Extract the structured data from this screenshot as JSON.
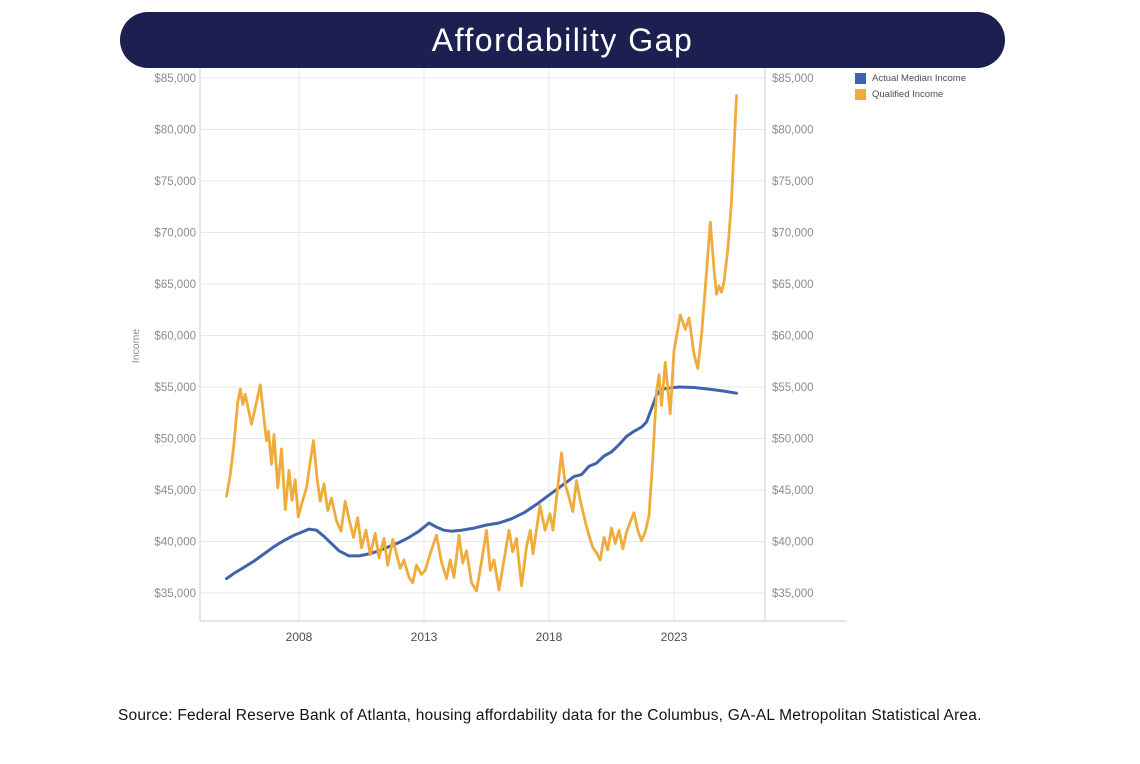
{
  "title": {
    "text": "Affordability Gap"
  },
  "source_note": "Source: Federal Reserve Bank of Atlanta, housing affordability data for the Columbus, GA-AL Metropolitan Statistical Area.",
  "colors": {
    "banner_bg": "#1c2050",
    "title_text": "#ffffff",
    "actual_median_income": "#4063ad",
    "qualified_income": "#efac3c",
    "gridline": "#e9e9e9",
    "axis_boundary": "#cfcfcf",
    "bottom_axis": "#c8c8c8",
    "tick_text": "#8c8c8c",
    "year_text": "#4d4d4d",
    "income_label_text": "#8c8c8c",
    "legend_text": "#4d4d5a",
    "source_text": "#141414"
  },
  "legend": {
    "position": "top-right",
    "items": [
      {
        "label": "Actual Median Income",
        "color": "#4063ad"
      },
      {
        "label": "Qualified Income",
        "color": "#efac3c"
      }
    ]
  },
  "axes": {
    "y_label": "Income",
    "y_tick_labels": [
      "$35,000",
      "$40,000",
      "$45,000",
      "$50,000",
      "$55,000",
      "$60,000",
      "$65,000",
      "$70,000",
      "$75,000",
      "$80,000",
      "$85,000"
    ],
    "y_tick_values": [
      35000,
      40000,
      45000,
      50000,
      55000,
      60000,
      65000,
      70000,
      75000,
      80000,
      85000
    ],
    "x_tick_labels": [
      "2008",
      "2013",
      "2018",
      "2023"
    ],
    "x_tick_values": [
      2008,
      2013,
      2018,
      2023
    ]
  },
  "chart_data": {
    "type": "line",
    "title": "Affordability Gap",
    "xlabel": "",
    "ylabel": "Income",
    "xlim": [
      2004.0,
      2026.6
    ],
    "ylim": [
      32300,
      86000
    ],
    "grid": true,
    "legend_position": "top-right",
    "x_ticks": [
      2008,
      2013,
      2018,
      2023
    ],
    "y_ticks": [
      35000,
      40000,
      45000,
      50000,
      55000,
      60000,
      65000,
      70000,
      75000,
      80000,
      85000
    ],
    "series": [
      {
        "name": "Actual Median Income",
        "color": "#4063ad",
        "points": [
          [
            2005.1,
            36400
          ],
          [
            2005.4,
            36900
          ],
          [
            2005.8,
            37500
          ],
          [
            2006.2,
            38100
          ],
          [
            2006.6,
            38800
          ],
          [
            2007.0,
            39500
          ],
          [
            2007.4,
            40100
          ],
          [
            2007.8,
            40600
          ],
          [
            2008.1,
            40900
          ],
          [
            2008.4,
            41200
          ],
          [
            2008.7,
            41100
          ],
          [
            2009.0,
            40500
          ],
          [
            2009.3,
            39800
          ],
          [
            2009.6,
            39100
          ],
          [
            2010.0,
            38600
          ],
          [
            2010.4,
            38600
          ],
          [
            2010.8,
            38800
          ],
          [
            2011.2,
            39100
          ],
          [
            2011.6,
            39500
          ],
          [
            2012.0,
            39900
          ],
          [
            2012.4,
            40400
          ],
          [
            2012.8,
            41000
          ],
          [
            2013.2,
            41800
          ],
          [
            2013.5,
            41400
          ],
          [
            2013.8,
            41100
          ],
          [
            2014.1,
            41000
          ],
          [
            2014.5,
            41100
          ],
          [
            2015.0,
            41300
          ],
          [
            2015.5,
            41600
          ],
          [
            2016.0,
            41800
          ],
          [
            2016.5,
            42200
          ],
          [
            2017.0,
            42800
          ],
          [
            2017.5,
            43600
          ],
          [
            2018.0,
            44500
          ],
          [
            2018.5,
            45400
          ],
          [
            2019.0,
            46300
          ],
          [
            2019.3,
            46500
          ],
          [
            2019.6,
            47300
          ],
          [
            2019.9,
            47600
          ],
          [
            2020.2,
            48300
          ],
          [
            2020.5,
            48700
          ],
          [
            2020.8,
            49400
          ],
          [
            2021.1,
            50200
          ],
          [
            2021.4,
            50700
          ],
          [
            2021.7,
            51100
          ],
          [
            2021.9,
            51600
          ],
          [
            2022.1,
            52900
          ],
          [
            2022.3,
            54200
          ],
          [
            2022.5,
            54800
          ],
          [
            2022.8,
            54900
          ],
          [
            2023.2,
            55000
          ],
          [
            2023.8,
            54950
          ],
          [
            2024.4,
            54800
          ],
          [
            2025.0,
            54600
          ],
          [
            2025.5,
            54400
          ]
        ]
      },
      {
        "name": "Qualified Income",
        "color": "#efac3c",
        "points": [
          [
            2005.1,
            44400
          ],
          [
            2005.25,
            46500
          ],
          [
            2005.4,
            49500
          ],
          [
            2005.55,
            53500
          ],
          [
            2005.65,
            54800
          ],
          [
            2005.75,
            53300
          ],
          [
            2005.85,
            54300
          ],
          [
            2005.95,
            53100
          ],
          [
            2006.1,
            51400
          ],
          [
            2006.25,
            53000
          ],
          [
            2006.45,
            55200
          ],
          [
            2006.6,
            51900
          ],
          [
            2006.7,
            49800
          ],
          [
            2006.78,
            50700
          ],
          [
            2006.9,
            47500
          ],
          [
            2007.0,
            50400
          ],
          [
            2007.15,
            45200
          ],
          [
            2007.3,
            49000
          ],
          [
            2007.45,
            43100
          ],
          [
            2007.6,
            46900
          ],
          [
            2007.72,
            44000
          ],
          [
            2007.85,
            46000
          ],
          [
            2007.97,
            42400
          ],
          [
            2008.1,
            43600
          ],
          [
            2008.3,
            45200
          ],
          [
            2008.45,
            47800
          ],
          [
            2008.58,
            49800
          ],
          [
            2008.72,
            46200
          ],
          [
            2008.85,
            43900
          ],
          [
            2009.0,
            45600
          ],
          [
            2009.15,
            43000
          ],
          [
            2009.3,
            44200
          ],
          [
            2009.5,
            42000
          ],
          [
            2009.68,
            41000
          ],
          [
            2009.85,
            43900
          ],
          [
            2010.0,
            42200
          ],
          [
            2010.18,
            40400
          ],
          [
            2010.35,
            42300
          ],
          [
            2010.5,
            39400
          ],
          [
            2010.68,
            41100
          ],
          [
            2010.85,
            38700
          ],
          [
            2011.05,
            40800
          ],
          [
            2011.2,
            38400
          ],
          [
            2011.4,
            40300
          ],
          [
            2011.55,
            37700
          ],
          [
            2011.75,
            40200
          ],
          [
            2011.9,
            38800
          ],
          [
            2012.05,
            37400
          ],
          [
            2012.2,
            38200
          ],
          [
            2012.4,
            36500
          ],
          [
            2012.55,
            36000
          ],
          [
            2012.7,
            37700
          ],
          [
            2012.9,
            36800
          ],
          [
            2013.05,
            37200
          ],
          [
            2013.3,
            39200
          ],
          [
            2013.5,
            40600
          ],
          [
            2013.7,
            38000
          ],
          [
            2013.9,
            36400
          ],
          [
            2014.05,
            38200
          ],
          [
            2014.2,
            36500
          ],
          [
            2014.4,
            40600
          ],
          [
            2014.55,
            37900
          ],
          [
            2014.7,
            39100
          ],
          [
            2014.9,
            36000
          ],
          [
            2015.1,
            35200
          ],
          [
            2015.3,
            38000
          ],
          [
            2015.5,
            41100
          ],
          [
            2015.65,
            37200
          ],
          [
            2015.8,
            38200
          ],
          [
            2016.0,
            35300
          ],
          [
            2016.2,
            38200
          ],
          [
            2016.4,
            41100
          ],
          [
            2016.55,
            39000
          ],
          [
            2016.7,
            40300
          ],
          [
            2016.9,
            35700
          ],
          [
            2017.1,
            39500
          ],
          [
            2017.25,
            41100
          ],
          [
            2017.36,
            38800
          ],
          [
            2017.64,
            43500
          ],
          [
            2017.84,
            41100
          ],
          [
            2018.04,
            42700
          ],
          [
            2018.16,
            41100
          ],
          [
            2018.5,
            48600
          ],
          [
            2018.65,
            45500
          ],
          [
            2018.8,
            44300
          ],
          [
            2018.95,
            42900
          ],
          [
            2019.1,
            45900
          ],
          [
            2019.25,
            44000
          ],
          [
            2019.45,
            41900
          ],
          [
            2019.6,
            40600
          ],
          [
            2019.75,
            39400
          ],
          [
            2019.9,
            38900
          ],
          [
            2020.05,
            38200
          ],
          [
            2020.2,
            40400
          ],
          [
            2020.35,
            39200
          ],
          [
            2020.5,
            41300
          ],
          [
            2020.65,
            39800
          ],
          [
            2020.8,
            41100
          ],
          [
            2020.95,
            39300
          ],
          [
            2021.1,
            40900
          ],
          [
            2021.25,
            41900
          ],
          [
            2021.4,
            42800
          ],
          [
            2021.55,
            41100
          ],
          [
            2021.7,
            40100
          ],
          [
            2021.85,
            40900
          ],
          [
            2022.0,
            42500
          ],
          [
            2022.15,
            48000
          ],
          [
            2022.3,
            54500
          ],
          [
            2022.4,
            56200
          ],
          [
            2022.5,
            53200
          ],
          [
            2022.65,
            57400
          ],
          [
            2022.85,
            52400
          ],
          [
            2023.0,
            58500
          ],
          [
            2023.25,
            62000
          ],
          [
            2023.45,
            60600
          ],
          [
            2023.6,
            61700
          ],
          [
            2023.8,
            58200
          ],
          [
            2023.95,
            56800
          ],
          [
            2024.1,
            60000
          ],
          [
            2024.28,
            65500
          ],
          [
            2024.45,
            71000
          ],
          [
            2024.6,
            66500
          ],
          [
            2024.7,
            64000
          ],
          [
            2024.8,
            64800
          ],
          [
            2024.9,
            64200
          ],
          [
            2025.0,
            65200
          ],
          [
            2025.15,
            68300
          ],
          [
            2025.3,
            73000
          ],
          [
            2025.5,
            83300
          ]
        ]
      }
    ]
  }
}
